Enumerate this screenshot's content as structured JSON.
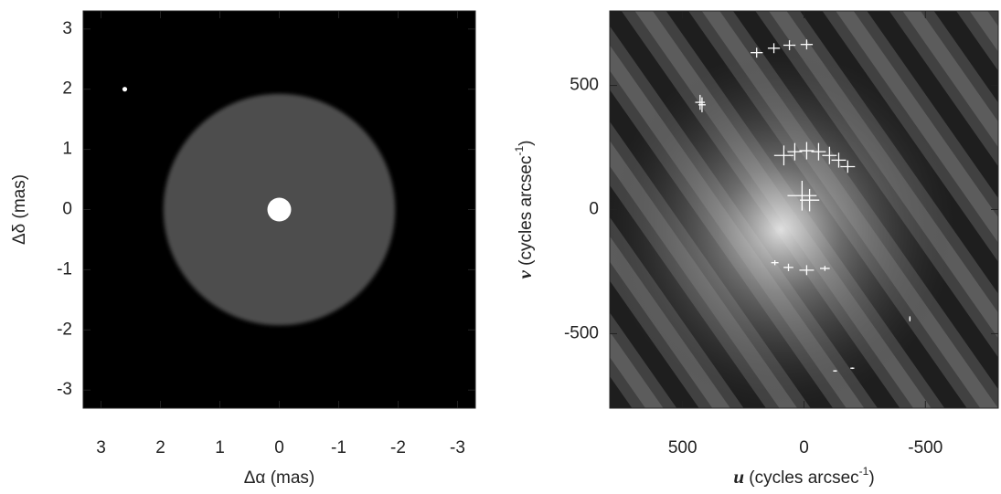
{
  "chart_data": [
    {
      "type": "image",
      "xlabel": "Δα (mas)",
      "ylabel": "Δδ (mas)",
      "xlim": [
        3.3,
        -3.3
      ],
      "ylim": [
        -3.3,
        3.3
      ],
      "xticks": [
        3,
        2,
        1,
        0,
        -1,
        -2,
        -3
      ],
      "yticks": [
        -3,
        -2,
        -1,
        0,
        1,
        2,
        3
      ],
      "disk": {
        "x": 0,
        "y": 0,
        "radius": 1.95,
        "color": "#4d4d4d"
      },
      "x": [
        0,
        2.6
      ],
      "y": [
        0,
        2.0
      ],
      "sizes": [
        0.2,
        0.04
      ],
      "color": "#ffffff"
    },
    {
      "type": "scatter",
      "xlabel": [
        "u",
        " (cycles arcsec",
        "-1",
        ")"
      ],
      "ylabel": [
        "v",
        " (cycles arcsec",
        "-1",
        ")"
      ],
      "xlim": [
        800,
        -800
      ],
      "ylim": [
        -800,
        800
      ],
      "xticks": [
        500,
        0,
        -500
      ],
      "yticks": [
        -500,
        0,
        500
      ],
      "color": "#ffffff",
      "x": [
        195,
        124,
        60,
        -11,
        428,
        420,
        83,
        38,
        -11,
        -60,
        -105,
        -143,
        -180,
        8,
        -23,
        120,
        64,
        -11,
        -86,
        -436,
        -128,
        -199
      ],
      "y": [
        632,
        650,
        662,
        665,
        432,
        422,
        218,
        233,
        237,
        233,
        218,
        199,
        173,
        56,
        38,
        -214,
        -233,
        -244,
        -237,
        -440,
        -650,
        -639
      ],
      "xerr": [
        25,
        25,
        25,
        25,
        20,
        15,
        40,
        30,
        30,
        30,
        30,
        30,
        30,
        60,
        40,
        15,
        20,
        30,
        20,
        3,
        8,
        8
      ],
      "yerr": [
        20,
        20,
        20,
        20,
        30,
        30,
        40,
        35,
        35,
        35,
        35,
        30,
        25,
        60,
        45,
        10,
        15,
        20,
        10,
        10,
        3,
        3
      ]
    }
  ]
}
